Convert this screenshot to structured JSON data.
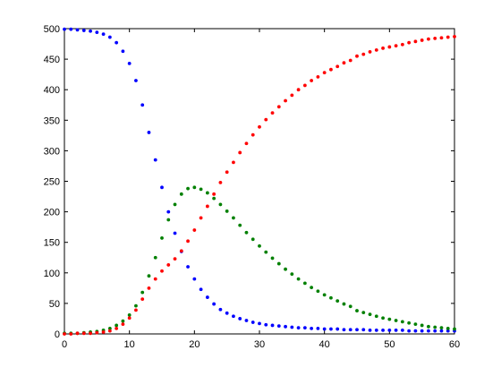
{
  "chart_data": {
    "type": "scatter",
    "x": [
      0,
      1,
      2,
      3,
      4,
      5,
      6,
      7,
      8,
      9,
      10,
      11,
      12,
      13,
      14,
      15,
      16,
      17,
      18,
      19,
      20,
      21,
      22,
      23,
      24,
      25,
      26,
      27,
      28,
      29,
      30,
      31,
      32,
      33,
      34,
      35,
      36,
      37,
      38,
      39,
      40,
      41,
      42,
      43,
      44,
      45,
      46,
      47,
      48,
      49,
      50,
      51,
      52,
      53,
      54,
      55,
      56,
      57,
      58,
      59,
      60
    ],
    "series": [
      {
        "color": "#0000ff",
        "values": [
          499,
          499,
          498,
          497,
          496,
          494,
          491,
          486,
          477,
          463,
          443,
          415,
          375,
          330,
          285,
          240,
          200,
          165,
          135,
          110,
          90,
          73,
          60,
          49,
          40,
          34,
          29,
          25,
          22,
          19,
          17,
          15,
          14,
          13,
          12,
          11,
          10,
          10,
          9,
          9,
          8,
          8,
          8,
          7,
          7,
          7,
          7,
          6,
          6,
          6,
          6,
          6,
          6,
          5,
          5,
          5,
          5,
          5,
          5,
          5,
          5
        ]
      },
      {
        "color": "#008000",
        "values": [
          1,
          1,
          1,
          2,
          3,
          4,
          6,
          9,
          14,
          21,
          31,
          46,
          68,
          95,
          125,
          157,
          187,
          212,
          229,
          238,
          240,
          237,
          231,
          222,
          212,
          201,
          190,
          178,
          166,
          155,
          144,
          134,
          124,
          115,
          106,
          98,
          90,
          83,
          76,
          70,
          64,
          59,
          54,
          49,
          45,
          38,
          35,
          32,
          29,
          26,
          24,
          22,
          20,
          18,
          16,
          14,
          12,
          11,
          10,
          9,
          8
        ]
      },
      {
        "color": "#ff0000",
        "values": [
          0,
          0,
          1,
          1,
          1,
          2,
          3,
          5,
          9,
          16,
          26,
          39,
          57,
          75,
          90,
          103,
          113,
          123,
          136,
          152,
          170,
          190,
          209,
          229,
          248,
          265,
          281,
          297,
          312,
          326,
          339,
          351,
          362,
          372,
          382,
          391,
          400,
          407,
          415,
          421,
          428,
          433,
          438,
          444,
          448,
          455,
          458,
          462,
          465,
          468,
          470,
          472,
          474,
          477,
          479,
          481,
          483,
          484,
          485,
          486,
          487
        ]
      }
    ],
    "xlim": [
      0,
      60
    ],
    "xticks": [
      0,
      10,
      20,
      30,
      40,
      50,
      60
    ],
    "ylim": [
      0,
      500
    ],
    "yticks": [
      0,
      50,
      100,
      150,
      200,
      250,
      300,
      350,
      400,
      450,
      500
    ]
  }
}
